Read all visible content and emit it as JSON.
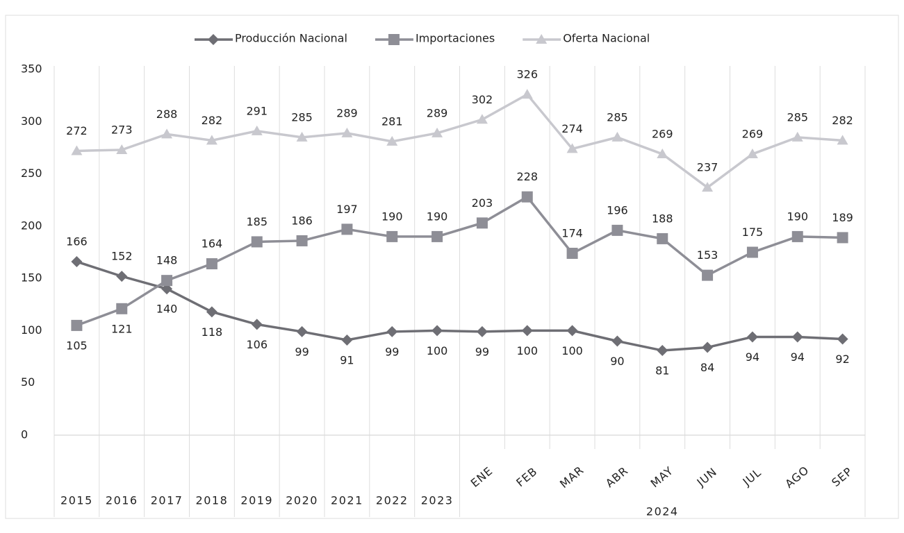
{
  "chart_data": {
    "type": "line",
    "categories": [
      "2015",
      "2016",
      "2017",
      "2018",
      "2019",
      "2020",
      "2021",
      "2022",
      "2023",
      "ENE",
      "FEB",
      "MAR",
      "ABR",
      "MAY",
      "JUN",
      "JUL",
      "AGO",
      "SEP"
    ],
    "x_group_label": "2024",
    "series": [
      {
        "name": "Producción Nacional",
        "color": "#6e6e74",
        "marker": "diamond",
        "values": [
          166,
          152,
          140,
          118,
          106,
          99,
          91,
          99,
          100,
          99,
          100,
          100,
          90,
          81,
          84,
          94,
          94,
          92
        ]
      },
      {
        "name": "Importaciones",
        "color": "#8e8e96",
        "marker": "square",
        "values": [
          105,
          121,
          148,
          164,
          185,
          186,
          197,
          190,
          190,
          203,
          228,
          174,
          196,
          188,
          153,
          175,
          190,
          189
        ]
      },
      {
        "name": "Oferta Nacional",
        "color": "#c8c8ce",
        "marker": "triangle",
        "values": [
          272,
          273,
          288,
          282,
          291,
          285,
          289,
          281,
          289,
          302,
          326,
          274,
          285,
          269,
          237,
          269,
          285,
          282
        ]
      }
    ],
    "ylim": [
      0,
      350
    ],
    "yticks": [
      0,
      50,
      100,
      150,
      200,
      250,
      300,
      350
    ],
    "grid": true,
    "legend": "top"
  }
}
